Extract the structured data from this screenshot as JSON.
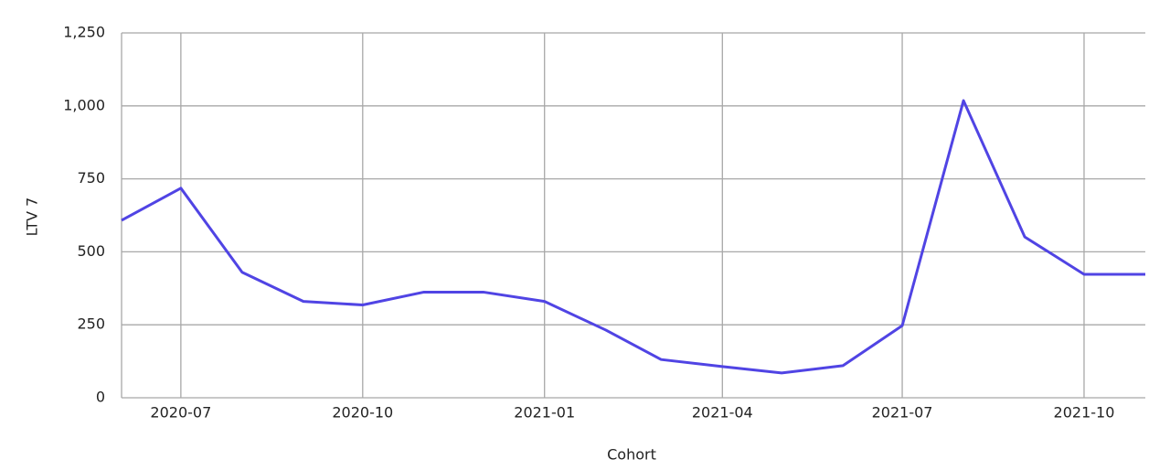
{
  "chart_data": {
    "type": "line",
    "x_label": "Cohort",
    "y_label": "LTV 7",
    "x": [
      "2020-06",
      "2020-07",
      "2020-08",
      "2020-09",
      "2020-10",
      "2020-11",
      "2020-12",
      "2021-01",
      "2021-02",
      "2021-03",
      "2021-04",
      "2021-05",
      "2021-06",
      "2021-07",
      "2021-08",
      "2021-09",
      "2021-10",
      "2021-11"
    ],
    "series": [
      {
        "name": "LTV 7",
        "color": "#5044e4",
        "values": [
          608,
          718,
          430,
          330,
          318,
          362,
          362,
          330,
          232,
          131,
          107,
          85,
          110,
          247,
          1018,
          551,
          423,
          423
        ]
      }
    ],
    "xlim": [
      "2020-06",
      "2021-11"
    ],
    "xticks": [
      "2020-07",
      "2020-10",
      "2021-01",
      "2021-04",
      "2021-07",
      "2021-10"
    ],
    "ylim": [
      0,
      1250
    ],
    "yticks": [
      0,
      250,
      500,
      750,
      {
        "value": 1000,
        "label": "1,000"
      },
      {
        "value": 1250,
        "label": "1,250"
      }
    ],
    "grid": true
  }
}
